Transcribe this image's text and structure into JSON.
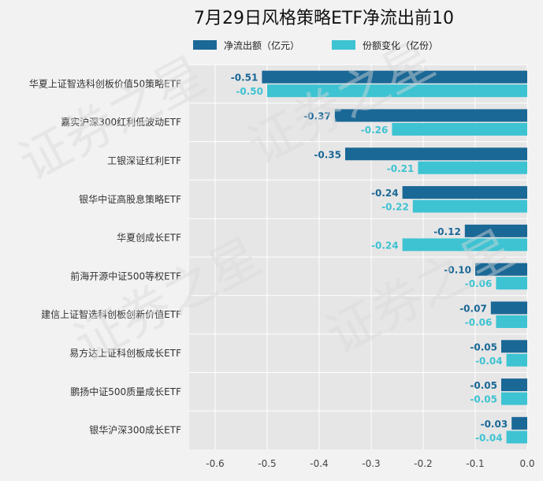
{
  "chart_data": {
    "type": "bar",
    "orientation": "horizontal",
    "title": "7月29日风格策略ETF净流出前10",
    "categories": [
      "华夏上证智选科创板价值50策略ETF",
      "嘉实沪深300红利低波动ETF",
      "工银深证红利ETF",
      "银华中证高股息策略ETF",
      "华夏创成长ETF",
      "前海开源中证500等权ETF",
      "建信上证智选科创板创新价值ETF",
      "易方达上证科创板成长ETF",
      "鹏扬中证500质量成长ETF",
      "银华沪深300成长ETF"
    ],
    "series": [
      {
        "name": "净流出额（亿元）",
        "color": "#1a6896",
        "values": [
          -0.51,
          -0.37,
          -0.35,
          -0.24,
          -0.12,
          -0.1,
          -0.07,
          -0.05,
          -0.05,
          -0.03
        ],
        "labels": [
          "-0.51",
          "-0.37",
          "-0.35",
          "-0.24",
          "-0.12",
          "-0.10",
          "-0.07",
          "-0.05",
          "-0.05",
          "-0.03"
        ]
      },
      {
        "name": "份额变化（亿份）",
        "color": "#3dc3d2",
        "values": [
          -0.5,
          -0.26,
          -0.21,
          -0.22,
          -0.24,
          -0.06,
          -0.06,
          -0.04,
          -0.05,
          -0.04
        ],
        "labels": [
          "-0.50",
          "-0.26",
          "-0.21",
          "-0.22",
          "-0.24",
          "-0.06",
          "-0.06",
          "-0.04",
          "-0.05",
          "-0.04"
        ]
      }
    ],
    "xlim": [
      -0.65,
      0.0
    ],
    "xticks": [
      -0.6,
      -0.5,
      -0.4,
      -0.3,
      -0.2,
      -0.1,
      0.0
    ],
    "xtick_labels": [
      "-0.6",
      "-0.5",
      "-0.4",
      "-0.3",
      "-0.2",
      "-0.1",
      "0.0"
    ],
    "grid": true,
    "legend_position": "top-center"
  },
  "watermark": {
    "text": "证券之星"
  }
}
